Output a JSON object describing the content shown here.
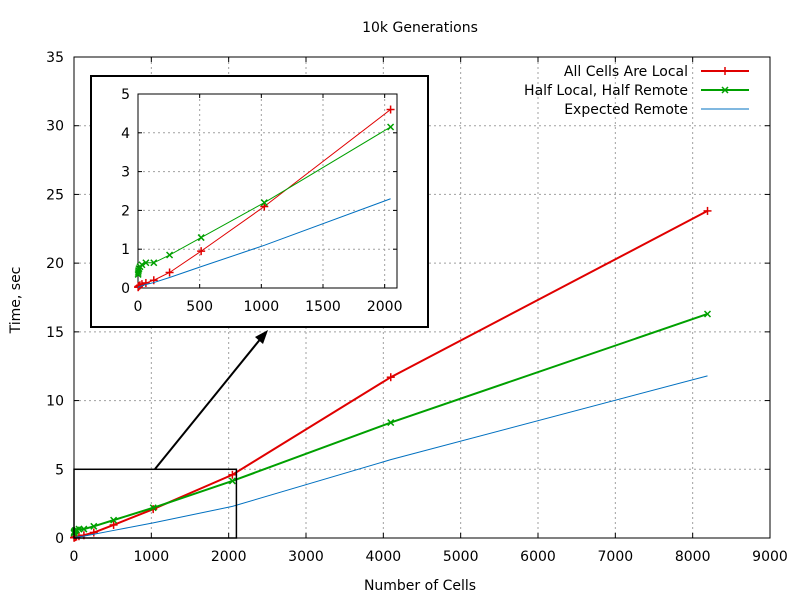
{
  "chart_data": {
    "type": "line",
    "title": "10k Generations",
    "xlabel": "Number of Cells",
    "ylabel": "Time, sec",
    "xlim": [
      0,
      9000
    ],
    "ylim": [
      0,
      35
    ],
    "xticks": [
      0,
      1000,
      2000,
      3000,
      4000,
      5000,
      6000,
      7000,
      8000,
      9000
    ],
    "yticks": [
      0,
      5,
      10,
      15,
      20,
      25,
      30,
      35
    ],
    "grid": true,
    "legend_position": "top-right",
    "series": [
      {
        "name": "All Cells Are Local",
        "color": "#e00000",
        "marker": "plus",
        "x": [
          1,
          2,
          4,
          8,
          16,
          32,
          64,
          128,
          256,
          512,
          1024,
          2048,
          4096,
          8192
        ],
        "y": [
          0.02,
          0.03,
          0.04,
          0.05,
          0.07,
          0.1,
          0.13,
          0.2,
          0.4,
          0.95,
          2.1,
          4.6,
          11.7,
          23.8
        ]
      },
      {
        "name": "Half Local, Half Remote",
        "color": "#00a000",
        "marker": "cross",
        "x": [
          1,
          2,
          4,
          8,
          16,
          32,
          64,
          128,
          256,
          512,
          1024,
          2048,
          4096,
          8192
        ],
        "y": [
          0.35,
          0.4,
          0.45,
          0.5,
          0.55,
          0.6,
          0.65,
          0.65,
          0.85,
          1.3,
          2.2,
          4.15,
          8.4,
          16.3
        ]
      },
      {
        "name": "Expected Remote",
        "color": "#0070c0",
        "marker": "none",
        "x": [
          1,
          2,
          4,
          8,
          16,
          32,
          64,
          128,
          256,
          512,
          1024,
          2048,
          4096,
          8192
        ],
        "y": [
          0.005,
          0.01,
          0.02,
          0.03,
          0.04,
          0.06,
          0.09,
          0.14,
          0.27,
          0.55,
          1.1,
          2.3,
          5.7,
          11.8
        ]
      }
    ],
    "inset": {
      "xlim": [
        0,
        2100
      ],
      "ylim": [
        0,
        5
      ],
      "xticks": [
        0,
        500,
        1000,
        1500,
        2000
      ],
      "yticks": [
        0,
        1,
        2,
        3,
        4,
        5
      ]
    }
  }
}
